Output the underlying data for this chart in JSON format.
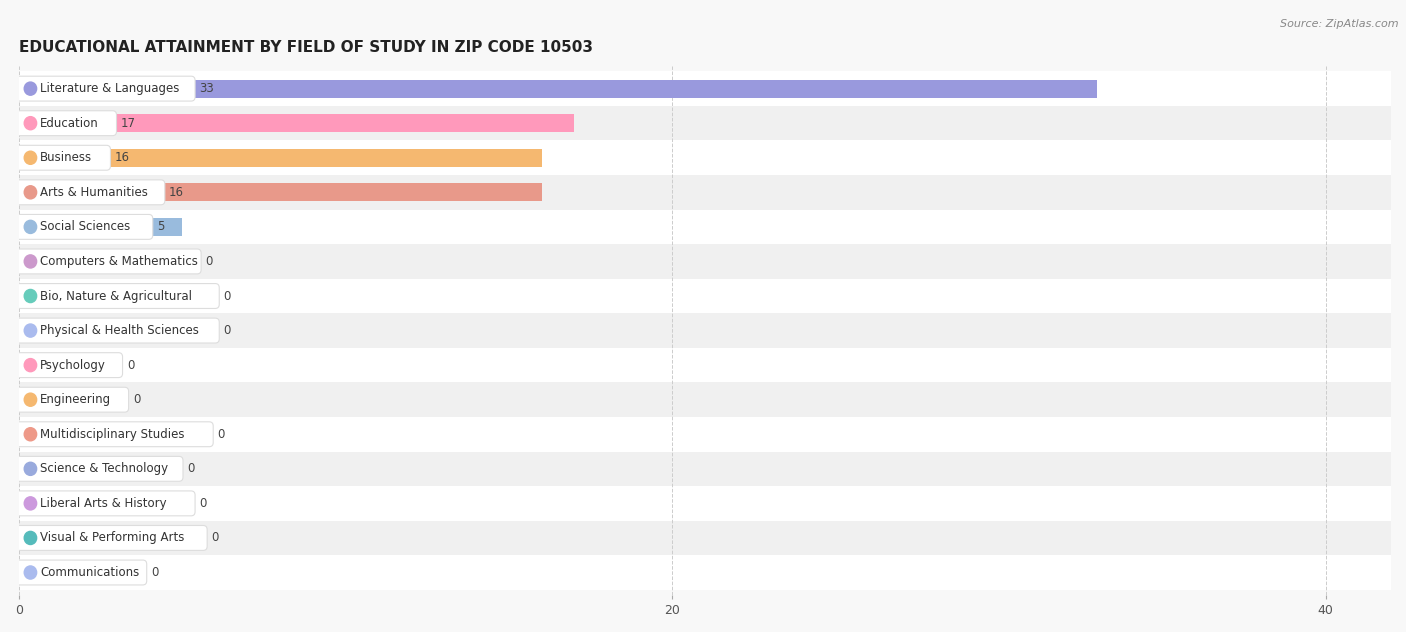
{
  "title": "EDUCATIONAL ATTAINMENT BY FIELD OF STUDY IN ZIP CODE 10503",
  "source": "Source: ZipAtlas.com",
  "categories": [
    "Literature & Languages",
    "Education",
    "Business",
    "Arts & Humanities",
    "Social Sciences",
    "Computers & Mathematics",
    "Bio, Nature & Agricultural",
    "Physical & Health Sciences",
    "Psychology",
    "Engineering",
    "Multidisciplinary Studies",
    "Science & Technology",
    "Liberal Arts & History",
    "Visual & Performing Arts",
    "Communications"
  ],
  "values": [
    33,
    17,
    16,
    16,
    5,
    0,
    0,
    0,
    0,
    0,
    0,
    0,
    0,
    0,
    0
  ],
  "bar_colors": [
    "#9999dd",
    "#ff99bb",
    "#f5b870",
    "#e8998a",
    "#99bbdd",
    "#cc99cc",
    "#66ccbb",
    "#aabbee",
    "#ff99bb",
    "#f5b870",
    "#ee9988",
    "#99aadd",
    "#cc99dd",
    "#55bbbb",
    "#aabbee"
  ],
  "xlim": [
    0,
    42
  ],
  "background_color": "#f8f8f8",
  "row_bg_even": "#ffffff",
  "row_bg_odd": "#f0f0f0",
  "title_fontsize": 11,
  "label_fontsize": 8.5,
  "value_fontsize": 8.5
}
